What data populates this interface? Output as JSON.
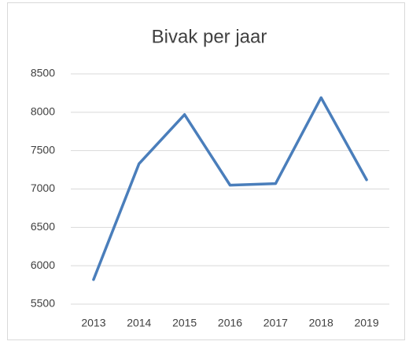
{
  "chart_data": {
    "type": "line",
    "title": "Bivak per jaar",
    "categories": [
      "2013",
      "2014",
      "2015",
      "2016",
      "2017",
      "2018",
      "2019"
    ],
    "series": [
      {
        "name": "Bivak",
        "color": "#4a7ebb",
        "values": [
          5820,
          7330,
          7970,
          7050,
          7070,
          8190,
          7120
        ]
      }
    ],
    "ylim": [
      5500,
      8500
    ],
    "yticks": [
      5500,
      6000,
      6500,
      7000,
      7500,
      8000,
      8500
    ],
    "grid": true
  }
}
